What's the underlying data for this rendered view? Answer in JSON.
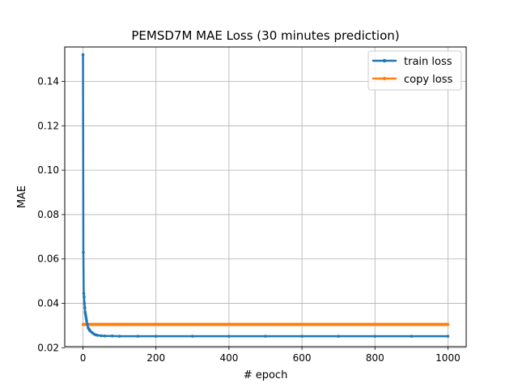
{
  "chart_data": {
    "type": "line",
    "title": "PEMSD7M MAE Loss (30 minutes prediction)",
    "xlabel": "# epoch",
    "ylabel": "MAE",
    "xlim": [
      -50,
      1050
    ],
    "ylim": [
      0.0205,
      0.1555
    ],
    "xticks": [
      0,
      200,
      400,
      600,
      800,
      1000
    ],
    "yticks": [
      0.02,
      0.04,
      0.06,
      0.08,
      0.1,
      0.12,
      0.14
    ],
    "xtick_labels": [
      "0",
      "200",
      "400",
      "600",
      "800",
      "1000"
    ],
    "ytick_labels": [
      "0.02",
      "0.04",
      "0.06",
      "0.08",
      "0.10",
      "0.12",
      "0.14"
    ],
    "grid": true,
    "legend_position": "top-right",
    "series": [
      {
        "name": "train loss",
        "color": "#1f77b4",
        "marker": "point",
        "x": [
          0,
          1,
          2,
          3,
          4,
          5,
          6,
          7,
          8,
          9,
          10,
          12,
          14,
          16,
          18,
          20,
          25,
          30,
          35,
          40,
          50,
          60,
          80,
          100,
          150,
          200,
          300,
          400,
          500,
          600,
          700,
          800,
          900,
          1000
        ],
        "y": [
          0.152,
          0.063,
          0.0445,
          0.043,
          0.04,
          0.038,
          0.036,
          0.035,
          0.034,
          0.033,
          0.032,
          0.0305,
          0.029,
          0.0285,
          0.028,
          0.0275,
          0.0268,
          0.0262,
          0.0258,
          0.0256,
          0.0254,
          0.0253,
          0.0253,
          0.0252,
          0.0252,
          0.0252,
          0.0252,
          0.0252,
          0.0252,
          0.0252,
          0.0252,
          0.0252,
          0.0252,
          0.0252
        ]
      },
      {
        "name": "copy loss",
        "color": "#ff7f0e",
        "marker": "point",
        "x": [
          0,
          1000
        ],
        "y": [
          0.0305,
          0.0305
        ]
      }
    ]
  }
}
